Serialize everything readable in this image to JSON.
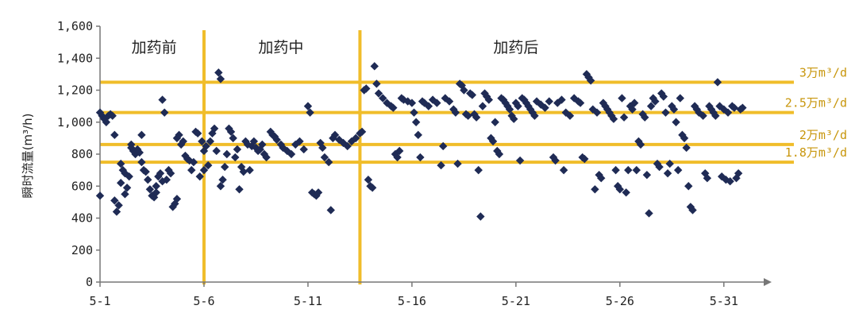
{
  "chart_data": {
    "type": "scatter",
    "ylabel": "瞬时流量(m³/h)",
    "xlim": [
      1,
      32
    ],
    "ylim": [
      0,
      1600
    ],
    "x_ticks": [
      {
        "value": 1,
        "label": "5-1"
      },
      {
        "value": 6,
        "label": "5-6"
      },
      {
        "value": 11,
        "label": "5-11"
      },
      {
        "value": 16,
        "label": "5-16"
      },
      {
        "value": 21,
        "label": "5-21"
      },
      {
        "value": 26,
        "label": "5-26"
      },
      {
        "value": 31,
        "label": "5-31"
      }
    ],
    "y_ticks": [
      {
        "value": 0,
        "label": "0"
      },
      {
        "value": 200,
        "label": "200"
      },
      {
        "value": 400,
        "label": "400"
      },
      {
        "value": 600,
        "label": "600"
      },
      {
        "value": 800,
        "label": "800"
      },
      {
        "value": 1000,
        "label": "1,000"
      },
      {
        "value": 1200,
        "label": "1,200"
      },
      {
        "value": 1400,
        "label": "1,400"
      },
      {
        "value": 1600,
        "label": "1,600"
      }
    ],
    "phase_dividers": [
      6,
      13.5
    ],
    "phases": [
      {
        "label": "加药前",
        "x": 3.6
      },
      {
        "label": "加药中",
        "x": 9.7
      },
      {
        "label": "加药后",
        "x": 21
      }
    ],
    "reference_lines": [
      {
        "y": 1250,
        "label": "3万m³/d"
      },
      {
        "y": 1060,
        "label": "2.5万m³/d"
      },
      {
        "y": 860,
        "label": "2万m³/d"
      },
      {
        "y": 750,
        "label": "1.8万m³/d"
      }
    ],
    "colors": {
      "points": "#1f2b55",
      "lines": "#f0bd2a",
      "axis": "#777777",
      "ref_label": "#c8960c"
    },
    "grid": false,
    "legend": "none",
    "series": [
      {
        "marker": "diamond",
        "points": [
          [
            1.0,
            1060
          ],
          [
            1.0,
            540
          ],
          [
            1.1,
            1040
          ],
          [
            1.2,
            1020
          ],
          [
            1.3,
            1000
          ],
          [
            1.4,
            1040
          ],
          [
            1.5,
            1050
          ],
          [
            1.6,
            1040
          ],
          [
            1.7,
            920
          ],
          [
            1.7,
            510
          ],
          [
            1.8,
            440
          ],
          [
            1.9,
            480
          ],
          [
            2.0,
            740
          ],
          [
            2.0,
            620
          ],
          [
            2.1,
            700
          ],
          [
            2.2,
            680
          ],
          [
            2.2,
            550
          ],
          [
            2.3,
            590
          ],
          [
            2.4,
            660
          ],
          [
            2.5,
            860
          ],
          [
            2.5,
            840
          ],
          [
            2.6,
            820
          ],
          [
            2.7,
            800
          ],
          [
            2.8,
            830
          ],
          [
            2.9,
            810
          ],
          [
            3.0,
            920
          ],
          [
            3.0,
            750
          ],
          [
            3.1,
            700
          ],
          [
            3.2,
            690
          ],
          [
            3.3,
            640
          ],
          [
            3.4,
            580
          ],
          [
            3.5,
            540
          ],
          [
            3.6,
            530
          ],
          [
            3.7,
            560
          ],
          [
            3.7,
            600
          ],
          [
            3.8,
            660
          ],
          [
            3.9,
            680
          ],
          [
            4.0,
            1140
          ],
          [
            4.0,
            630
          ],
          [
            4.1,
            1060
          ],
          [
            4.2,
            640
          ],
          [
            4.3,
            700
          ],
          [
            4.4,
            680
          ],
          [
            4.5,
            470
          ],
          [
            4.6,
            490
          ],
          [
            4.7,
            520
          ],
          [
            4.7,
            900
          ],
          [
            4.8,
            920
          ],
          [
            4.9,
            860
          ],
          [
            5.0,
            880
          ],
          [
            5.1,
            790
          ],
          [
            5.2,
            770
          ],
          [
            5.3,
            760
          ],
          [
            5.4,
            700
          ],
          [
            5.5,
            750
          ],
          [
            5.6,
            940
          ],
          [
            5.7,
            930
          ],
          [
            5.8,
            660
          ],
          [
            5.9,
            880
          ],
          [
            6.0,
            820
          ],
          [
            6.0,
            700
          ],
          [
            6.1,
            850
          ],
          [
            6.2,
            730
          ],
          [
            6.3,
            880
          ],
          [
            6.4,
            930
          ],
          [
            6.5,
            960
          ],
          [
            6.6,
            820
          ],
          [
            6.7,
            1310
          ],
          [
            6.8,
            1270
          ],
          [
            6.8,
            600
          ],
          [
            6.9,
            640
          ],
          [
            7.0,
            720
          ],
          [
            7.1,
            800
          ],
          [
            7.2,
            960
          ],
          [
            7.3,
            940
          ],
          [
            7.4,
            900
          ],
          [
            7.5,
            780
          ],
          [
            7.6,
            830
          ],
          [
            7.7,
            580
          ],
          [
            7.8,
            720
          ],
          [
            7.9,
            690
          ],
          [
            8.0,
            880
          ],
          [
            8.1,
            860
          ],
          [
            8.2,
            700
          ],
          [
            8.3,
            850
          ],
          [
            8.4,
            880
          ],
          [
            8.5,
            840
          ],
          [
            8.6,
            820
          ],
          [
            8.7,
            830
          ],
          [
            8.8,
            860
          ],
          [
            8.9,
            800
          ],
          [
            9.0,
            780
          ],
          [
            9.2,
            940
          ],
          [
            9.3,
            920
          ],
          [
            9.4,
            910
          ],
          [
            9.5,
            890
          ],
          [
            9.7,
            860
          ],
          [
            9.8,
            840
          ],
          [
            10.0,
            820
          ],
          [
            10.2,
            800
          ],
          [
            10.4,
            860
          ],
          [
            10.6,
            880
          ],
          [
            10.8,
            830
          ],
          [
            11.0,
            1100
          ],
          [
            11.1,
            1060
          ],
          [
            11.2,
            560
          ],
          [
            11.3,
            550
          ],
          [
            11.4,
            540
          ],
          [
            11.5,
            560
          ],
          [
            11.6,
            870
          ],
          [
            11.7,
            840
          ],
          [
            11.8,
            780
          ],
          [
            12.0,
            750
          ],
          [
            12.1,
            450
          ],
          [
            12.2,
            900
          ],
          [
            12.3,
            920
          ],
          [
            12.5,
            890
          ],
          [
            12.7,
            870
          ],
          [
            12.9,
            850
          ],
          [
            13.1,
            880
          ],
          [
            13.3,
            900
          ],
          [
            13.5,
            930
          ],
          [
            13.6,
            940
          ],
          [
            13.7,
            1200
          ],
          [
            13.8,
            1210
          ],
          [
            13.9,
            640
          ],
          [
            14.0,
            600
          ],
          [
            14.1,
            590
          ],
          [
            14.2,
            1350
          ],
          [
            14.3,
            1240
          ],
          [
            14.4,
            1180
          ],
          [
            14.6,
            1150
          ],
          [
            14.8,
            1120
          ],
          [
            15.0,
            1100
          ],
          [
            15.1,
            1090
          ],
          [
            15.2,
            800
          ],
          [
            15.3,
            780
          ],
          [
            15.4,
            820
          ],
          [
            15.5,
            1150
          ],
          [
            15.6,
            1140
          ],
          [
            15.8,
            1130
          ],
          [
            16.0,
            1120
          ],
          [
            16.1,
            1060
          ],
          [
            16.2,
            1000
          ],
          [
            16.3,
            920
          ],
          [
            16.4,
            780
          ],
          [
            16.5,
            1130
          ],
          [
            16.6,
            1120
          ],
          [
            16.8,
            1100
          ],
          [
            17.0,
            1140
          ],
          [
            17.2,
            1120
          ],
          [
            17.4,
            730
          ],
          [
            17.5,
            850
          ],
          [
            17.6,
            1150
          ],
          [
            17.8,
            1130
          ],
          [
            18.0,
            1080
          ],
          [
            18.1,
            1060
          ],
          [
            18.2,
            740
          ],
          [
            18.3,
            1240
          ],
          [
            18.4,
            1230
          ],
          [
            18.5,
            1200
          ],
          [
            18.6,
            1050
          ],
          [
            18.7,
            1040
          ],
          [
            18.8,
            1180
          ],
          [
            18.9,
            1170
          ],
          [
            19.0,
            1050
          ],
          [
            19.1,
            1030
          ],
          [
            19.2,
            700
          ],
          [
            19.3,
            410
          ],
          [
            19.4,
            1100
          ],
          [
            19.5,
            1180
          ],
          [
            19.6,
            1160
          ],
          [
            19.7,
            1140
          ],
          [
            19.8,
            900
          ],
          [
            19.9,
            880
          ],
          [
            20.0,
            1000
          ],
          [
            20.1,
            820
          ],
          [
            20.2,
            800
          ],
          [
            20.3,
            1150
          ],
          [
            20.4,
            1140
          ],
          [
            20.5,
            1120
          ],
          [
            20.6,
            1100
          ],
          [
            20.7,
            1080
          ],
          [
            20.8,
            1040
          ],
          [
            20.9,
            1020
          ],
          [
            21.0,
            1120
          ],
          [
            21.1,
            1100
          ],
          [
            21.2,
            760
          ],
          [
            21.3,
            1150
          ],
          [
            21.4,
            1140
          ],
          [
            21.5,
            1120
          ],
          [
            21.6,
            1100
          ],
          [
            21.7,
            1080
          ],
          [
            21.8,
            1060
          ],
          [
            21.9,
            1040
          ],
          [
            22.0,
            1130
          ],
          [
            22.2,
            1110
          ],
          [
            22.4,
            1090
          ],
          [
            22.6,
            1130
          ],
          [
            22.8,
            780
          ],
          [
            22.9,
            760
          ],
          [
            23.0,
            1120
          ],
          [
            23.2,
            1140
          ],
          [
            23.3,
            700
          ],
          [
            23.4,
            1060
          ],
          [
            23.6,
            1040
          ],
          [
            23.8,
            1150
          ],
          [
            24.0,
            1130
          ],
          [
            24.1,
            1120
          ],
          [
            24.2,
            780
          ],
          [
            24.3,
            770
          ],
          [
            24.4,
            1300
          ],
          [
            24.5,
            1280
          ],
          [
            24.6,
            1260
          ],
          [
            24.7,
            1080
          ],
          [
            24.8,
            580
          ],
          [
            24.9,
            1060
          ],
          [
            25.0,
            670
          ],
          [
            25.1,
            650
          ],
          [
            25.2,
            1120
          ],
          [
            25.3,
            1100
          ],
          [
            25.4,
            1080
          ],
          [
            25.5,
            1060
          ],
          [
            25.6,
            1040
          ],
          [
            25.7,
            1020
          ],
          [
            25.8,
            700
          ],
          [
            25.9,
            600
          ],
          [
            26.0,
            580
          ],
          [
            26.1,
            1150
          ],
          [
            26.2,
            1030
          ],
          [
            26.3,
            560
          ],
          [
            26.4,
            700
          ],
          [
            26.5,
            1100
          ],
          [
            26.6,
            1080
          ],
          [
            26.7,
            1120
          ],
          [
            26.8,
            700
          ],
          [
            26.9,
            880
          ],
          [
            27.0,
            860
          ],
          [
            27.1,
            1050
          ],
          [
            27.2,
            1030
          ],
          [
            27.3,
            670
          ],
          [
            27.4,
            430
          ],
          [
            27.5,
            1100
          ],
          [
            27.6,
            1150
          ],
          [
            27.7,
            1130
          ],
          [
            27.8,
            740
          ],
          [
            27.9,
            720
          ],
          [
            28.0,
            1180
          ],
          [
            28.1,
            1160
          ],
          [
            28.2,
            1060
          ],
          [
            28.3,
            680
          ],
          [
            28.4,
            740
          ],
          [
            28.5,
            1100
          ],
          [
            28.6,
            1080
          ],
          [
            28.7,
            1000
          ],
          [
            28.8,
            700
          ],
          [
            28.9,
            1150
          ],
          [
            29.0,
            920
          ],
          [
            29.1,
            900
          ],
          [
            29.2,
            840
          ],
          [
            29.3,
            600
          ],
          [
            29.4,
            470
          ],
          [
            29.5,
            450
          ],
          [
            29.6,
            1100
          ],
          [
            29.7,
            1080
          ],
          [
            29.8,
            1060
          ],
          [
            30.0,
            1040
          ],
          [
            30.1,
            680
          ],
          [
            30.2,
            650
          ],
          [
            30.3,
            1100
          ],
          [
            30.4,
            1080
          ],
          [
            30.5,
            1060
          ],
          [
            30.6,
            1040
          ],
          [
            30.7,
            1250
          ],
          [
            30.8,
            1100
          ],
          [
            30.9,
            660
          ],
          [
            31.0,
            1080
          ],
          [
            31.1,
            640
          ],
          [
            31.2,
            1060
          ],
          [
            31.3,
            630
          ],
          [
            31.4,
            1100
          ],
          [
            31.5,
            1090
          ],
          [
            31.6,
            650
          ],
          [
            31.7,
            680
          ],
          [
            31.8,
            1080
          ],
          [
            31.9,
            1090
          ]
        ]
      }
    ]
  }
}
